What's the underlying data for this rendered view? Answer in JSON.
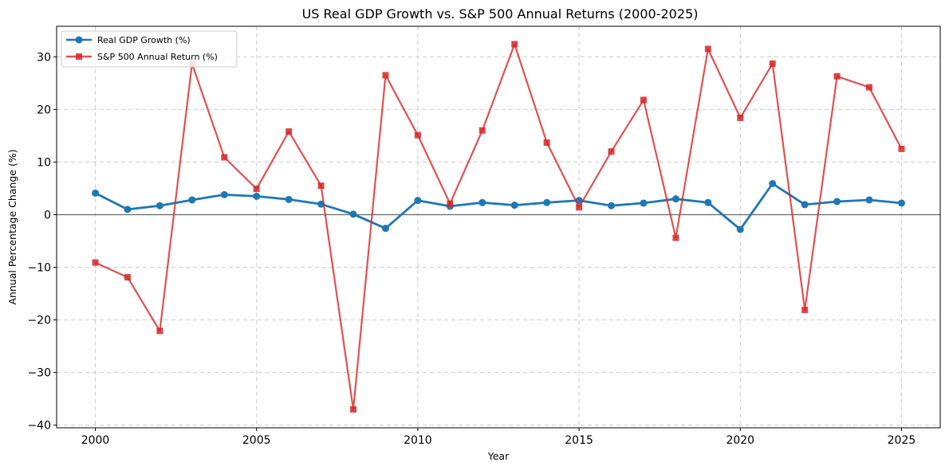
{
  "chart_data": {
    "type": "line",
    "title": "US Real GDP Growth vs. S&P 500 Annual Returns (2000-2025)",
    "xlabel": "Year",
    "ylabel": "Annual Percentage Change (%)",
    "xlim": [
      1998.8,
      2026.2
    ],
    "ylim": [
      -40.5,
      35.8
    ],
    "x_ticks": [
      2000,
      2005,
      2010,
      2015,
      2020,
      2025
    ],
    "y_ticks": [
      -40,
      -30,
      -20,
      -10,
      0,
      10,
      20,
      30
    ],
    "grid": true,
    "zero_line": true,
    "legend_position": "top-left",
    "x": [
      2000,
      2001,
      2002,
      2003,
      2004,
      2005,
      2006,
      2007,
      2008,
      2009,
      2010,
      2011,
      2012,
      2013,
      2014,
      2015,
      2016,
      2017,
      2018,
      2019,
      2020,
      2021,
      2022,
      2023,
      2024,
      2025
    ],
    "series": [
      {
        "name": "Real GDP Growth (%)",
        "color": "#1f77b4",
        "marker": "circle",
        "values": [
          4.1,
          1.0,
          1.7,
          2.8,
          3.8,
          3.5,
          2.9,
          2.0,
          0.1,
          -2.6,
          2.7,
          1.6,
          2.3,
          1.8,
          2.3,
          2.7,
          1.7,
          2.2,
          3.0,
          2.3,
          -2.8,
          5.9,
          1.9,
          2.5,
          2.8,
          2.2
        ]
      },
      {
        "name": "S&P 500 Annual Return (%)",
        "color": "#d62728",
        "marker": "square",
        "values": [
          -9.1,
          -11.9,
          -22.1,
          28.7,
          10.9,
          4.9,
          15.8,
          5.5,
          -37.0,
          26.5,
          15.1,
          2.1,
          16.0,
          32.4,
          13.7,
          1.4,
          12.0,
          21.8,
          -4.4,
          31.5,
          18.4,
          28.7,
          -18.1,
          26.3,
          24.2,
          12.5
        ]
      }
    ]
  }
}
